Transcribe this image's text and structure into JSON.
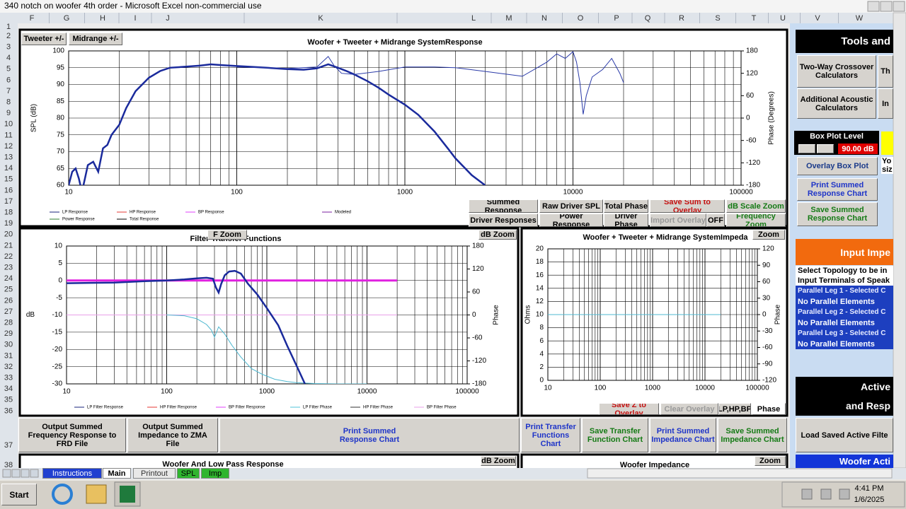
{
  "window": {
    "title": "340 notch on woofer 4th order - Microsoft Excel non-commercial use"
  },
  "column_headers": [
    "F",
    "G",
    "H",
    "I",
    "J",
    "K",
    "L",
    "M",
    "N",
    "O",
    "P",
    "Q",
    "R",
    "S",
    "T",
    "U",
    "V",
    "W"
  ],
  "row_headers": [
    1,
    2,
    3,
    4,
    5,
    6,
    7,
    8,
    9,
    10,
    11,
    12,
    13,
    14,
    15,
    16,
    17,
    18,
    19,
    20,
    21,
    22,
    23,
    24,
    25,
    26,
    27,
    28,
    29,
    30,
    31,
    32,
    33,
    34,
    35,
    36,
    37,
    38
  ],
  "buttons": {
    "tweeter": "Tweeter +/-",
    "midrange": "Midrange  +/-",
    "summed_response": "Summed Response",
    "raw_driver_spl": "Raw Driver SPL",
    "total_phase": "Total Phase",
    "save_sum": "Save Sum to Overlay",
    "db_scale_zoom": "dB Scale Zoom",
    "driver_responses": "Driver Responses",
    "power_response": "Power Response",
    "driver_phase": "Driver Phase",
    "import_overlay": "Import Overlay",
    "off": "OFF",
    "frequency_zoom": "Frequency Zoom",
    "f_zoom": "F Zoom",
    "filter_db_zoom": "dB Zoom",
    "imp_zoom": "Zoom",
    "save_z": "Save Z to Overlay",
    "clear_overlay": "Clear Overlay",
    "lp_hp_bp": "LP,HP,BP",
    "phase": "Phase",
    "output_frd": "Output Summed Frequency Response to FRD File",
    "output_zma": "Output Summed Impedance to ZMA File",
    "print_summed_response": "Print Summed Response Chart",
    "print_transfer": "Print Transfer Functions Chart",
    "save_transfer": "Save Transfer Function Chart",
    "print_impedance": "Print Summed Impedance Chart",
    "save_impedance": "Save Summed Impedance Chart",
    "woofer_db_zoom": "dB Zoom",
    "woofer_zoom": "Zoom"
  },
  "lower_charts": {
    "woofer_response": "Woofer  And Low Pass Response",
    "woofer_impedance": "Woofer  Impedance"
  },
  "panel": {
    "tools": "Tools and",
    "two_way": "Two-Way Crossover Calculators",
    "th": "Th",
    "acoustic": "Additional Acoustic Calculators",
    "in": "In",
    "box_plot": "Box Plot Level",
    "box_level": "90.00 dB",
    "yo": "Yo",
    "siz": "siz",
    "overlay_box": "Overlay Box Plot",
    "print_summed": "Print Summed Response Chart",
    "save_summed": "Save Summed Response Chart",
    "input_impe": "Input Impe",
    "topology_1": "Select Topology to be in",
    "topology_2": "Input Terminals of Speak",
    "legs": [
      {
        "title": "Parallel Leg 1 - Selected C",
        "value": "No Parallel Elements"
      },
      {
        "title": "Parallel Leg 2 - Selected C",
        "value": "No Parallel Elements"
      },
      {
        "title": "Parallel Leg 3 - Selected C",
        "value": "No Parallel Elements"
      }
    ],
    "active_1": "Active",
    "active_2": "and Resp",
    "load_saved": "Load Saved Active Filte",
    "woofer_acti": "Woofer Acti"
  },
  "tabs": [
    "Instructions",
    "Main",
    "Printout",
    "SPL",
    "Imp"
  ],
  "taskbar": {
    "start": "Start",
    "time": "4:41 PM",
    "date": "1/6/2025"
  },
  "charts": {
    "spl": {
      "type": "line",
      "title": "Woofer + Tweeter + Midrange  SystemResponse",
      "y_label": "SPL (dB)",
      "y2_label": "Phase (Degrees)",
      "log_x": true,
      "grid": true,
      "xlim": [
        10,
        100000
      ],
      "xticks": [
        10,
        100,
        1000,
        10000,
        100000
      ],
      "ylim": [
        60,
        100
      ],
      "yticks": [
        60,
        65,
        70,
        75,
        80,
        85,
        90,
        95,
        100
      ],
      "y2lim": [
        -180,
        180
      ],
      "y2ticks": [
        -180,
        -120,
        -60,
        0,
        60,
        120,
        180
      ],
      "legend": [
        {
          "name": "LP Response",
          "color": "#1a237e"
        },
        {
          "name": "HP Response",
          "color": "#e53935"
        },
        {
          "name": "BP Response",
          "color": "#e040fb"
        },
        {
          "name": "Modeled",
          "color": "#7b1fa2"
        },
        {
          "name": "Power Response",
          "color": "#2e7d32"
        },
        {
          "name": "Total Response",
          "color": "#000000"
        }
      ],
      "series": [
        {
          "color": "#1a2a9c",
          "width": 2.5,
          "x": [
            10,
            10.5,
            11,
            11.5,
            12,
            12.5,
            13,
            14,
            15,
            16,
            17,
            18,
            20,
            22,
            25,
            30,
            35,
            40,
            50,
            60,
            70,
            80,
            100,
            150,
            200,
            250,
            300,
            350,
            400,
            450,
            500,
            600,
            700,
            800,
            1000,
            1200,
            1500,
            1800,
            2000,
            2500,
            3000
          ],
          "values": [
            60,
            64,
            65,
            62,
            58,
            62,
            66,
            67,
            64,
            71,
            72,
            75,
            78,
            83,
            88,
            92,
            94,
            95,
            95.3,
            95.6,
            96,
            95.8,
            95.5,
            95,
            94.6,
            94.4,
            94.8,
            96,
            95,
            94,
            93,
            91,
            89,
            87,
            84,
            81,
            76,
            71,
            68,
            63,
            60
          ]
        },
        {
          "color": "#2a3aa8",
          "width": 1,
          "axis": "y2",
          "x": [
            100,
            150,
            200,
            300,
            350,
            380,
            420,
            500,
            700,
            1000,
            1500,
            2000,
            3000,
            5000,
            7000,
            8000,
            9000,
            10000,
            10500,
            11000,
            11500,
            12000,
            13000,
            15000,
            17000,
            19000,
            20000
          ],
          "values": [
            137,
            135,
            133,
            137,
            165,
            140,
            120,
            117,
            125,
            137,
            137,
            135,
            125,
            112,
            150,
            172,
            160,
            178,
            150,
            95,
            10,
            60,
            110,
            130,
            160,
            120,
            95
          ]
        }
      ]
    },
    "filter": {
      "type": "line",
      "title": "Filter Transfer Functions",
      "y_label": "dB",
      "y2_label": "Phase",
      "log_x": true,
      "grid": true,
      "xlim": [
        10,
        100000
      ],
      "xticks": [
        10,
        100,
        1000,
        10000,
        100000
      ],
      "ylim": [
        -30,
        10
      ],
      "yticks": [
        -30,
        -25,
        -20,
        -15,
        -10,
        -5,
        0,
        5,
        10
      ],
      "y2lim": [
        -180,
        180
      ],
      "y2ticks": [
        -180,
        -120,
        -60,
        0,
        60,
        120,
        180
      ],
      "legend": [
        {
          "name": "LP Filter Response",
          "color": "#1a237e"
        },
        {
          "name": "HP Filter Response",
          "color": "#e53935"
        },
        {
          "name": "BP Filter Response",
          "color": "#e040fb"
        },
        {
          "name": "LP Filter Phase",
          "color": "#4fc3d9"
        },
        {
          "name": "HP Filter Phase",
          "color": "#333333"
        },
        {
          "name": "BP Filter Phase",
          "color": "#e8a0e8"
        }
      ],
      "series": [
        {
          "color": "#e8a0e8",
          "width": 1,
          "axis": "y2",
          "x": [
            10,
            20000
          ],
          "values": [
            0,
            0
          ]
        },
        {
          "color": "#4fb8d0",
          "width": 1,
          "axis": "y2",
          "x": [
            100,
            150,
            200,
            250,
            280,
            300,
            330,
            380,
            450,
            550,
            700,
            900,
            1200,
            1600,
            2000,
            3000,
            5000,
            10000
          ],
          "values": [
            0,
            -2,
            -10,
            -25,
            -40,
            -58,
            -31,
            -50,
            -80,
            -110,
            -140,
            -155,
            -168,
            -174,
            -177,
            -179,
            -180,
            -180
          ]
        },
        {
          "color": "#e020e0",
          "width": 3,
          "x": [
            10,
            20000
          ],
          "values": [
            0,
            0
          ]
        },
        {
          "color": "#1a2a9c",
          "width": 2.5,
          "x": [
            10,
            30,
            60,
            100,
            150,
            200,
            250,
            290,
            310,
            330,
            350,
            380,
            420,
            480,
            550,
            650,
            800,
            1000,
            1300,
            1600,
            2000,
            2400
          ],
          "values": [
            -0.8,
            -0.6,
            -0.2,
            0,
            0.3,
            0.6,
            0.8,
            0.5,
            -2,
            -3.5,
            -1,
            1.5,
            2.6,
            2.8,
            2,
            -1,
            -4,
            -8,
            -13,
            -19,
            -25,
            -30
          ]
        }
      ]
    },
    "impedance": {
      "type": "line",
      "title": "Woofer + Tweeter + Midrange  SystemImpeda",
      "y_label": "Ohms",
      "y2_label": "Phase",
      "log_x": true,
      "grid": true,
      "xlim": [
        10,
        100000
      ],
      "xticks": [
        10,
        100,
        1000,
        10000,
        100000
      ],
      "ylim": [
        0,
        20
      ],
      "yticks": [
        0,
        2,
        4,
        6,
        8,
        10,
        12,
        14,
        16,
        18,
        20
      ],
      "y2lim": [
        -120,
        120
      ],
      "y2ticks": [
        -120,
        -90,
        -60,
        -30,
        0,
        30,
        60,
        90,
        120
      ],
      "series": [
        {
          "color": "#4fb8d0",
          "width": 1,
          "x": [
            10,
            20000
          ],
          "values": [
            10,
            10
          ]
        }
      ]
    }
  }
}
